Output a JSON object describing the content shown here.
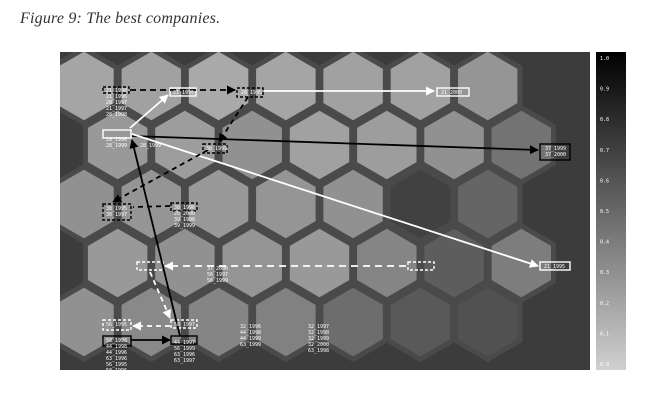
{
  "caption": "Figure 9: The best companies.",
  "colors": {
    "background": "#3c3c3c",
    "panel": "#e6e6e6",
    "arrow_white": "#ffffff",
    "arrow_black": "#000000",
    "scale_top": "#000000",
    "scale_bottom": "#cfcfcf"
  },
  "scale": [
    "1.0",
    "0.9",
    "0.8",
    "0.7",
    "0.6",
    "0.5",
    "0.4",
    "0.3",
    "0.2",
    "0.1",
    "0.0"
  ],
  "hex_shades": [
    [
      0.3,
      0.32,
      0.28,
      0.3,
      0.32,
      0.32,
      0.38
    ],
    [
      0.36,
      0.34,
      0.4,
      0.32,
      0.34,
      0.4,
      0.55
    ],
    [
      0.4,
      0.38,
      0.36,
      0.38,
      0.4,
      0.8,
      0.62
    ],
    [
      0.36,
      0.4,
      0.38,
      0.36,
      0.46,
      0.66,
      0.5
    ],
    [
      0.4,
      0.44,
      0.46,
      0.48,
      0.58,
      0.68,
      0.72
    ]
  ],
  "nodes": [
    {
      "labels": [
        "21_1998",
        "21_1996",
        "28_1997",
        "21_1997",
        "28_1998"
      ]
    },
    {
      "labels": [
        "21_1995"
      ]
    },
    {
      "labels": [
        "28_1995"
      ]
    },
    {
      "labels": [
        "21_2000"
      ]
    },
    {
      "labels": [
        "28_1996",
        "28_1999",
        "28_1999"
      ]
    },
    {
      "labels": [
        "38_1999"
      ]
    },
    {
      "labels": [
        "37_1999",
        "37_2000"
      ]
    },
    {
      "labels": [
        "38_1995",
        "30_1997"
      ]
    },
    {
      "labels": [
        "38_1996",
        "28_2000",
        "39_1998",
        "39_1999"
      ]
    },
    {
      "labels": [
        "37_2000",
        "56_1997",
        "56_1999"
      ]
    },
    {
      "labels": [
        "21_1995"
      ]
    },
    {
      "labels": [
        "56_1995",
        "58_1998",
        "44_1998",
        "44_1996",
        "63_1996",
        "56_1995",
        "58_1996"
      ]
    },
    {
      "labels": [
        "58_1997",
        "44_1997",
        "56_1999",
        "63_1996",
        "63_1997"
      ]
    },
    {
      "labels": [
        "32_1996",
        "44_1998",
        "44_1999",
        "63_1999"
      ]
    },
    {
      "labels": [
        "32_1997",
        "32_1998",
        "32_1999",
        "32_2000",
        "63_1998"
      ]
    }
  ]
}
